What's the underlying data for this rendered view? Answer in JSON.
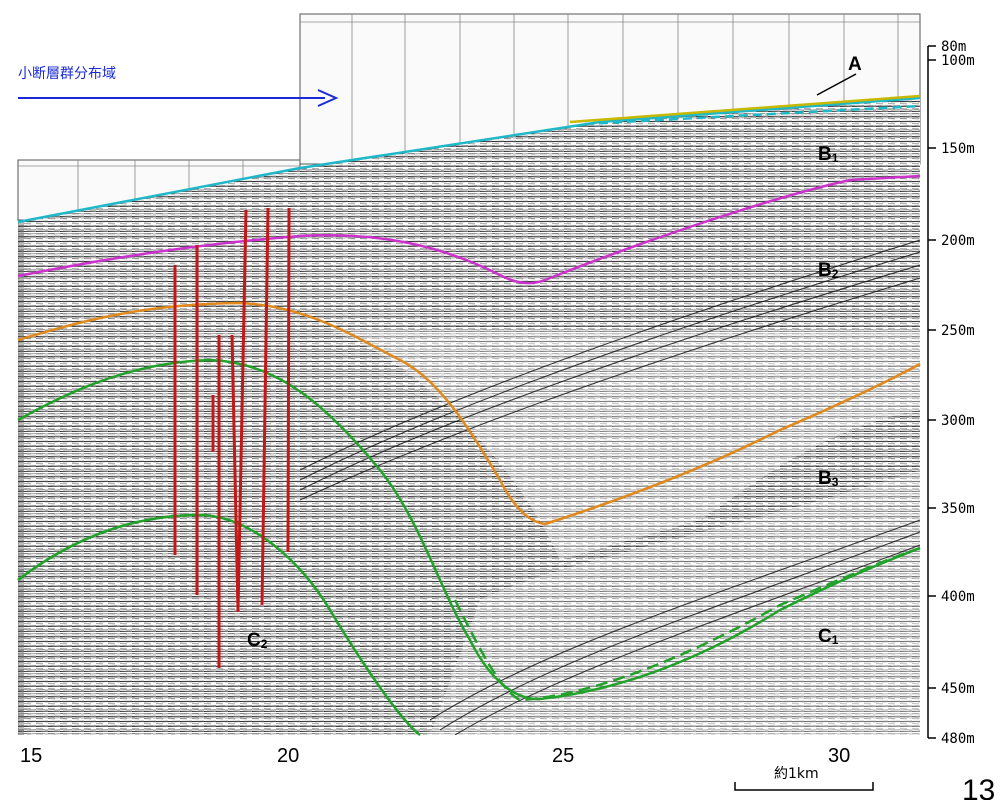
{
  "legend": {
    "fault_zone_label": "小断層群分布域",
    "arrow_color": "#1a2bd6"
  },
  "depth_axis": {
    "labels": [
      "80m",
      "100m",
      "150m",
      "200m",
      "250m",
      "300m",
      "350m",
      "400m",
      "450m",
      "480m"
    ],
    "values": [
      80,
      100,
      150,
      200,
      250,
      300,
      350,
      400,
      450,
      480
    ]
  },
  "distance_axis": {
    "labels": [
      "15",
      "20",
      "25",
      "30"
    ],
    "values": [
      15,
      20,
      25,
      30
    ]
  },
  "layers": {
    "A": {
      "label": "A",
      "color": "#c9b800"
    },
    "B1": {
      "label": "B",
      "sub": "1",
      "color": "#1fb8c8"
    },
    "B2": {
      "label": "B",
      "sub": "2",
      "color": "#cc33cc"
    },
    "B3": {
      "label": "B",
      "sub": "3",
      "color": "#e08a1e"
    },
    "C1": {
      "label": "C",
      "sub": "1",
      "color": "#22a22a"
    },
    "C2": {
      "label": "C",
      "sub": "2",
      "color": "#22a22a"
    }
  },
  "fault_color": "#c41818",
  "scale_bar": {
    "label": "約1km"
  },
  "page_number": "13"
}
